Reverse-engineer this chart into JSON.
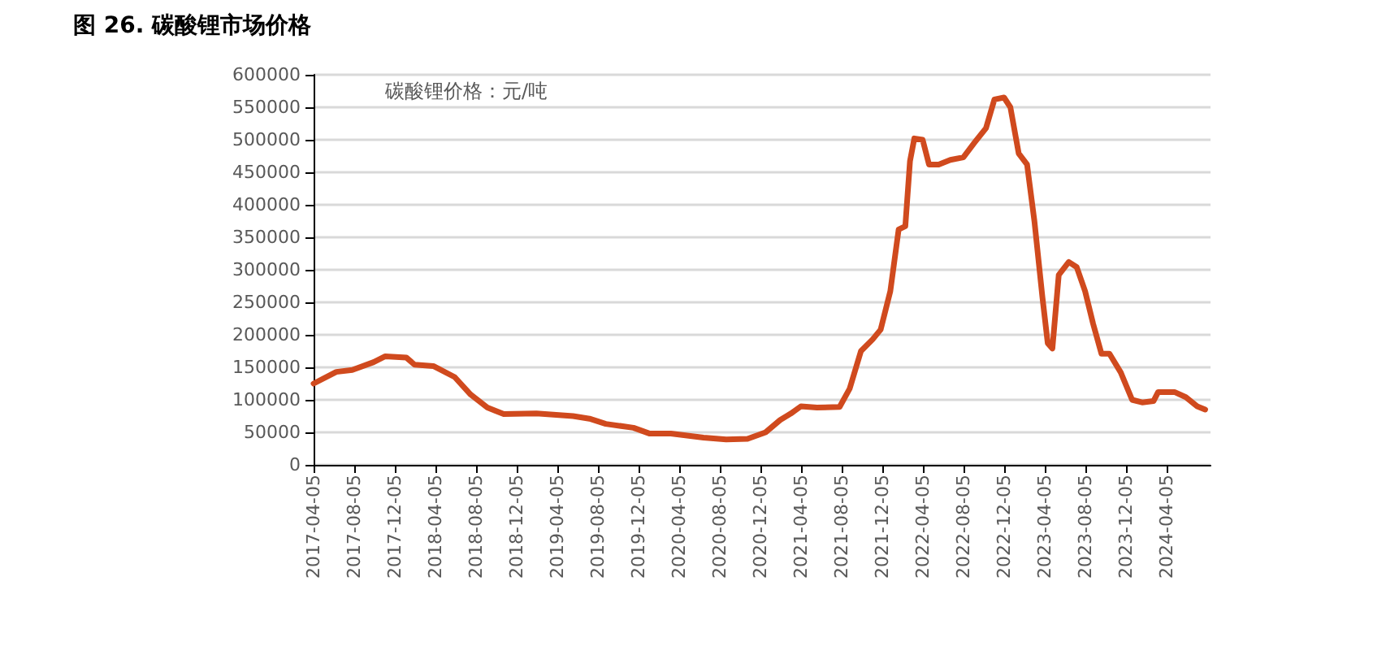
{
  "chart_data": {
    "type": "line",
    "title": "图 26. 碳酸锂市场价格",
    "annotations": [
      "碳酸锂价格：元/吨"
    ],
    "x": [
      "2017-04-05",
      "2017-06-12",
      "2017-07-30",
      "2017-10-02",
      "2017-11-06",
      "2018-01-08",
      "2018-02-02",
      "2018-03-30",
      "2018-06-02",
      "2018-07-20",
      "2018-09-08",
      "2018-10-27",
      "2019-02-02",
      "2019-05-23",
      "2019-07-11",
      "2019-08-29",
      "2019-11-20",
      "2020-01-08",
      "2020-03-11",
      "2020-06-17",
      "2020-08-24",
      "2020-10-27",
      "2020-12-20",
      "2021-02-02",
      "2021-03-06",
      "2021-04-05",
      "2021-05-23",
      "2021-07-30",
      "2021-08-29",
      "2021-10-02",
      "2021-11-06",
      "2021-11-30",
      "2021-12-29",
      "2022-01-23",
      "2022-02-12",
      "2022-02-26",
      "2022-03-11",
      "2022-04-05",
      "2022-04-24",
      "2022-05-23",
      "2022-06-27",
      "2022-08-05",
      "2022-09-08",
      "2022-10-12",
      "2022-11-06",
      "2022-12-05",
      "2022-12-24",
      "2023-01-18",
      "2023-02-12",
      "2023-03-06",
      "2023-03-30",
      "2023-04-15",
      "2023-04-29",
      "2023-05-18",
      "2023-06-17",
      "2023-07-11",
      "2023-08-05",
      "2023-08-29",
      "2023-09-23",
      "2023-10-17",
      "2023-11-20",
      "2023-12-24",
      "2024-01-23",
      "2024-02-26",
      "2024-03-11",
      "2024-04-29",
      "2024-06-02",
      "2024-07-06",
      "2024-07-30"
    ],
    "series": [
      {
        "color": "#d04a1e",
        "values": [
          125000,
          143000,
          146000,
          158000,
          167000,
          165000,
          154000,
          152000,
          135000,
          108000,
          88000,
          78000,
          79000,
          75000,
          71000,
          63000,
          57000,
          48000,
          48000,
          42000,
          39000,
          40000,
          50000,
          69000,
          79000,
          90000,
          88000,
          89000,
          117000,
          175000,
          193000,
          208000,
          267000,
          362000,
          367000,
          467000,
          502000,
          500000,
          462000,
          462000,
          469000,
          473000,
          496000,
          518000,
          562000,
          565000,
          550000,
          479000,
          462000,
          375000,
          258000,
          187000,
          179000,
          292000,
          312000,
          304000,
          267000,
          217000,
          171000,
          171000,
          142000,
          100000,
          96000,
          98000,
          112000,
          112000,
          104000,
          90000,
          85000
        ]
      }
    ],
    "xlim": [
      "2017-04-05",
      "2024-08-15"
    ],
    "xticks": [
      "2017-04-05",
      "2017-08-05",
      "2017-12-05",
      "2018-04-05",
      "2018-08-05",
      "2018-12-05",
      "2019-04-05",
      "2019-08-05",
      "2019-12-05",
      "2020-04-05",
      "2020-08-05",
      "2020-12-05",
      "2021-04-05",
      "2021-08-05",
      "2021-12-05",
      "2022-04-05",
      "2022-08-05",
      "2022-12-05",
      "2023-04-05",
      "2023-08-05",
      "2023-12-05",
      "2024-04-05"
    ],
    "ylim": [
      0,
      600000
    ],
    "yticks": [
      0,
      50000,
      100000,
      150000,
      200000,
      250000,
      300000,
      350000,
      400000,
      450000,
      500000,
      550000,
      600000
    ],
    "grid": "y",
    "marker": "none",
    "line_style": "solid"
  }
}
